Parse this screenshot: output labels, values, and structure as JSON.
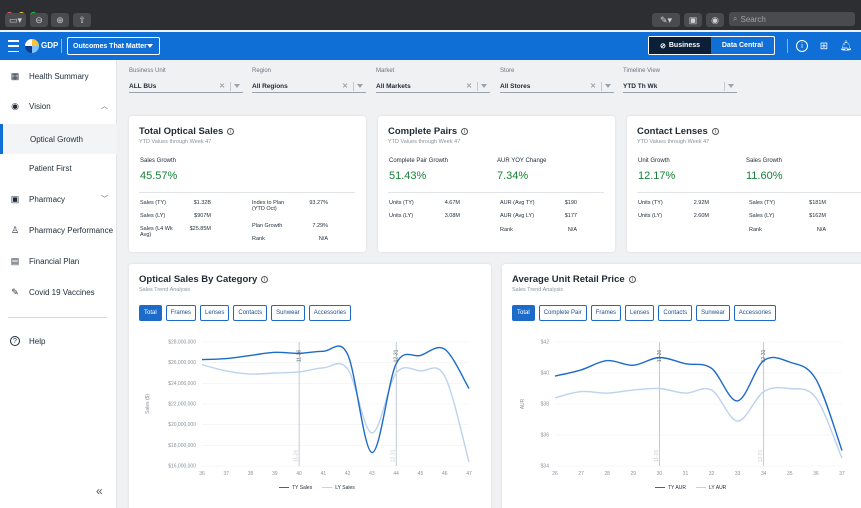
{
  "mac": {
    "search_placeholder": "Search"
  },
  "header": {
    "app": "GDP",
    "dashboard": "Outcomes That Matter",
    "toggle_on": "Business",
    "toggle_off": "Data Central"
  },
  "sidebar": {
    "items": [
      {
        "label": "Health Summary",
        "icon": "grid-icon"
      },
      {
        "label": "Vision",
        "icon": "eye-icon"
      },
      {
        "label": "Optical Growth"
      },
      {
        "label": "Patient First"
      },
      {
        "label": "Pharmacy",
        "icon": "pharmacy-icon"
      },
      {
        "label": "Pharmacy Performance",
        "icon": "person-icon"
      },
      {
        "label": "Financial Plan",
        "icon": "wallet-icon"
      },
      {
        "label": "Covid 19 Vaccines",
        "icon": "syringe-icon"
      },
      {
        "label": "Help",
        "icon": "help-icon"
      }
    ]
  },
  "filters": [
    {
      "label": "Business Unit",
      "value": "ALL BUs"
    },
    {
      "label": "Region",
      "value": "All Regions"
    },
    {
      "label": "Market",
      "value": "All Markets"
    },
    {
      "label": "Store",
      "value": "All Stores"
    },
    {
      "label": "Timeline View",
      "value": "YTD Th Wk"
    }
  ],
  "cards": {
    "optical": {
      "title": "Total Optical Sales",
      "sub": "YTD Values through Week 47",
      "kpi_label": "Sales Growth",
      "kpi_value": "45.57%",
      "left_rows": [
        [
          "Sales (TY)",
          "$1.32B"
        ],
        [
          "Sales (LY)",
          "$907M"
        ],
        [
          "Sales (L4 Wk Avg)",
          "$25.85M"
        ]
      ],
      "right_rows": [
        [
          "Index to Plan (YTD Oct)",
          "93.27%"
        ],
        [
          "Plan Growth",
          "7.29%"
        ],
        [
          "Rank",
          "N/A"
        ]
      ]
    },
    "pairs": {
      "title": "Complete Pairs",
      "sub": "YTD Values through Week 47",
      "kpi1_label": "Complete Pair Growth",
      "kpi1_value": "51.43%",
      "kpi2_label": "AUR YOY Change",
      "kpi2_value": "7.34%",
      "left_rows": [
        [
          "Units (TY)",
          "4.67M"
        ],
        [
          "Units (LY)",
          "3.08M"
        ]
      ],
      "right_rows": [
        [
          "AUR (Avg TY)",
          "$190"
        ],
        [
          "AUR (Avg LY)",
          "$177"
        ],
        [
          "Rank",
          "N/A"
        ]
      ]
    },
    "contacts": {
      "title": "Contact Lenses",
      "sub": "YTD Values through Week 47",
      "kpi1_label": "Unit Growth",
      "kpi1_value": "12.17%",
      "kpi2_label": "Sales Growth",
      "kpi2_value": "11.60%",
      "left_rows": [
        [
          "Units (TY)",
          "2.92M"
        ],
        [
          "Units (LY)",
          "2.60M"
        ]
      ],
      "right_rows": [
        [
          "Sales (TY)",
          "$181M"
        ],
        [
          "Sales (LY)",
          "$162M"
        ],
        [
          "Rank",
          "N/A"
        ]
      ]
    }
  },
  "charts": {
    "sales": {
      "title": "Optical Sales By Category",
      "sub": "Sales Trend Analysis",
      "pills": [
        "Total",
        "Frames",
        "Lenses",
        "Contacts",
        "Sunwear",
        "Accessories"
      ]
    },
    "aur": {
      "title": "Average Unit Retail Price",
      "sub": "Sales Trend Analysis",
      "pills": [
        "Total",
        "Complete Pair",
        "Frames",
        "Lenses",
        "Contacts",
        "Sunwear",
        "Accessories"
      ]
    }
  },
  "chart_data": [
    {
      "type": "line",
      "title": "Optical Sales By Category",
      "ylabel": "Sales ($)",
      "x": [
        "36",
        "37",
        "38",
        "39",
        "40",
        "41",
        "42",
        "43",
        "44",
        "45",
        "46",
        "47"
      ],
      "ylim": [
        16000000,
        28000000
      ],
      "yticks": [
        "$16,000,000",
        "$18,000,000",
        "$20,000,000",
        "$22,000,000",
        "$24,000,000",
        "$26,000,000",
        "$28,000,000"
      ],
      "series": [
        {
          "name": "TY Sales",
          "color": "#1d6bc9",
          "values": [
            26300000,
            26400000,
            26700000,
            27000000,
            26900000,
            27100000,
            26800000,
            17300000,
            25900000,
            26700000,
            27300000,
            23500000
          ]
        },
        {
          "name": "LY Sales",
          "color": "#bcd2ee",
          "values": [
            25800000,
            25200000,
            24900000,
            25000000,
            25100000,
            25500000,
            25400000,
            19200000,
            25000000,
            25200000,
            24700000,
            16400000
          ]
        }
      ],
      "markers": [
        {
          "x": "40",
          "label": "11-26"
        },
        {
          "x": "44",
          "label": "12-31"
        }
      ],
      "legend": "bottom"
    },
    {
      "type": "line",
      "title": "Average Unit Retail Price",
      "ylabel": "AUR",
      "x": [
        "26",
        "27",
        "28",
        "29",
        "30",
        "31",
        "32",
        "33",
        "34",
        "35",
        "36",
        "37"
      ],
      "ylim": [
        34,
        42
      ],
      "yticks": [
        "$34",
        "$36",
        "$38",
        "$40",
        "$42"
      ],
      "series": [
        {
          "name": "TY AUR",
          "color": "#1d6bc9",
          "values": [
            39.8,
            40.2,
            40.8,
            40.5,
            41.0,
            40.6,
            40.3,
            38.2,
            40.8,
            40.7,
            39.6,
            35.0
          ]
        },
        {
          "name": "LY AUR",
          "color": "#bcd2ee",
          "values": [
            38.4,
            38.8,
            38.7,
            38.9,
            39.0,
            38.7,
            38.9,
            36.9,
            38.8,
            39.0,
            38.4,
            34.5
          ]
        }
      ],
      "markers": [
        {
          "x": "30",
          "label": "11-26"
        },
        {
          "x": "34",
          "label": "12-31"
        }
      ],
      "legend": "bottom"
    }
  ]
}
